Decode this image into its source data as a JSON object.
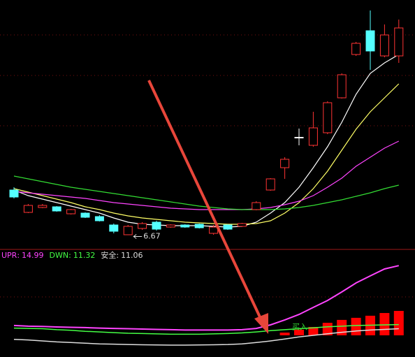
{
  "chart_data": [
    {
      "type": "candlestick",
      "ylim": [
        6.3,
        13.4
      ],
      "candles": [
        {
          "open": 7.96,
          "high": 8.04,
          "low": 7.72,
          "close": 7.76
        },
        {
          "open": 7.32,
          "high": 7.56,
          "low": 7.3,
          "close": 7.52
        },
        {
          "open": 7.46,
          "high": 7.56,
          "low": 7.44,
          "close": 7.52
        },
        {
          "open": 7.48,
          "high": 7.5,
          "low": 7.34,
          "close": 7.36
        },
        {
          "open": 7.28,
          "high": 7.42,
          "low": 7.26,
          "close": 7.4
        },
        {
          "open": 7.3,
          "high": 7.32,
          "low": 7.16,
          "close": 7.18
        },
        {
          "open": 7.2,
          "high": 7.24,
          "low": 7.06,
          "close": 7.08
        },
        {
          "open": 6.96,
          "high": 7.0,
          "low": 6.72,
          "close": 6.78
        },
        {
          "open": 6.68,
          "high": 6.96,
          "low": 6.67,
          "close": 6.92
        },
        {
          "open": 6.86,
          "high": 7.04,
          "low": 6.82,
          "close": 7.0
        },
        {
          "open": 7.04,
          "high": 7.08,
          "low": 6.8,
          "close": 6.84
        },
        {
          "open": 6.9,
          "high": 6.98,
          "low": 6.88,
          "close": 6.96
        },
        {
          "open": 6.96,
          "high": 6.98,
          "low": 6.88,
          "close": 6.9
        },
        {
          "open": 6.98,
          "high": 7.0,
          "low": 6.86,
          "close": 6.88
        },
        {
          "open": 6.72,
          "high": 6.96,
          "low": 6.68,
          "close": 6.9
        },
        {
          "open": 6.96,
          "high": 6.98,
          "low": 6.82,
          "close": 6.84
        },
        {
          "open": 6.92,
          "high": 7.02,
          "low": 6.9,
          "close": 7.0
        },
        {
          "open": 7.4,
          "high": 7.64,
          "low": 7.38,
          "close": 7.6
        },
        {
          "open": 7.96,
          "high": 8.3,
          "low": 7.94,
          "close": 8.28
        },
        {
          "open": 8.6,
          "high": 8.9,
          "low": 8.28,
          "close": 8.84
        },
        {
          "open": 9.47,
          "high": 9.72,
          "low": 9.24,
          "close": 9.47
        },
        {
          "open": 9.24,
          "high": 10.2,
          "low": 9.2,
          "close": 9.74
        },
        {
          "open": 9.6,
          "high": 10.5,
          "low": 9.56,
          "close": 10.46
        },
        {
          "open": 10.6,
          "high": 11.3,
          "low": 10.58,
          "close": 11.26
        },
        {
          "open": 11.84,
          "high": 12.2,
          "low": 11.8,
          "close": 12.16
        },
        {
          "open": 12.52,
          "high": 13.1,
          "low": 11.4,
          "close": 11.94
        },
        {
          "open": 11.8,
          "high": 12.7,
          "low": 11.76,
          "close": 12.4
        },
        {
          "open": 11.8,
          "high": 12.84,
          "low": 11.6,
          "close": 12.6
        }
      ],
      "up_color": "#ff3333",
      "down_color": "#54ffff",
      "flat_color": "#ffffff",
      "lines": [
        {
          "color": "#ffffff",
          "values": [
            7.96,
            7.8,
            7.7,
            7.6,
            7.5,
            7.4,
            7.3,
            7.16,
            7.04,
            6.98,
            6.96,
            6.94,
            6.94,
            6.94,
            6.92,
            6.9,
            6.92,
            7.04,
            7.3,
            7.6,
            8.04,
            8.6,
            9.2,
            9.9,
            10.7,
            11.3,
            11.6,
            11.84
          ]
        },
        {
          "color": "#ffff66",
          "values": [
            8.0,
            7.9,
            7.8,
            7.7,
            7.6,
            7.48,
            7.4,
            7.3,
            7.22,
            7.16,
            7.12,
            7.08,
            7.04,
            7.02,
            7.0,
            6.98,
            6.98,
            7.0,
            7.08,
            7.3,
            7.6,
            8.0,
            8.5,
            9.1,
            9.7,
            10.2,
            10.6,
            11.0
          ]
        },
        {
          "color": "#ff44ff",
          "values": [
            7.92,
            7.88,
            7.84,
            7.8,
            7.76,
            7.72,
            7.66,
            7.6,
            7.56,
            7.52,
            7.48,
            7.44,
            7.42,
            7.4,
            7.4,
            7.4,
            7.4,
            7.42,
            7.46,
            7.54,
            7.64,
            7.8,
            8.04,
            8.3,
            8.64,
            8.9,
            9.16,
            9.36
          ]
        },
        {
          "color": "#33dd33",
          "values": [
            8.36,
            8.28,
            8.2,
            8.12,
            8.04,
            7.98,
            7.92,
            7.86,
            7.8,
            7.74,
            7.68,
            7.62,
            7.56,
            7.5,
            7.46,
            7.42,
            7.4,
            7.4,
            7.4,
            7.42,
            7.46,
            7.52,
            7.6,
            7.68,
            7.78,
            7.88,
            8.0,
            8.1
          ]
        }
      ],
      "annotation": {
        "text": "6.67",
        "index": 8
      }
    },
    {
      "type": "line",
      "ylim": [
        9.3,
        16.0
      ],
      "legend_separator": ":",
      "series": [
        {
          "name": "UPR",
          "color": "#ff44ff",
          "values": [
            11.26,
            11.22,
            11.2,
            11.17,
            11.15,
            11.13,
            11.1,
            11.08,
            11.06,
            11.04,
            11.02,
            11.0,
            10.98,
            10.98,
            10.98,
            10.98,
            11.0,
            11.08,
            11.3,
            11.61,
            11.95,
            12.39,
            12.82,
            13.35,
            13.91,
            14.35,
            14.78,
            14.99
          ]
        },
        {
          "name": "DWN",
          "color": "#44ff44",
          "values": [
            11.1,
            11.08,
            11.06,
            11.0,
            10.96,
            10.9,
            10.86,
            10.82,
            10.78,
            10.76,
            10.74,
            10.72,
            10.72,
            10.72,
            10.74,
            10.76,
            10.8,
            10.86,
            10.94,
            11.0,
            11.06,
            11.12,
            11.18,
            11.22,
            11.26,
            11.28,
            11.3,
            11.32
          ]
        },
        {
          "name": "安全",
          "color": "#dddddd",
          "values": [
            10.4,
            10.36,
            10.3,
            10.24,
            10.2,
            10.16,
            10.12,
            10.1,
            10.08,
            10.06,
            10.05,
            10.04,
            10.04,
            10.05,
            10.06,
            10.08,
            10.12,
            10.2,
            10.3,
            10.42,
            10.55,
            10.65,
            10.75,
            10.84,
            10.92,
            10.98,
            11.02,
            11.06
          ]
        }
      ],
      "bars": {
        "color": "#ff0000",
        "base": 10.65,
        "values": [
          null,
          null,
          null,
          null,
          null,
          null,
          null,
          null,
          null,
          null,
          null,
          null,
          null,
          null,
          null,
          null,
          null,
          null,
          null,
          10.82,
          11.0,
          11.17,
          11.43,
          11.61,
          11.74,
          11.87,
          12.04,
          12.17
        ]
      },
      "annotation": {
        "text": "买入",
        "index": 20,
        "color": "#33dd33"
      }
    }
  ]
}
